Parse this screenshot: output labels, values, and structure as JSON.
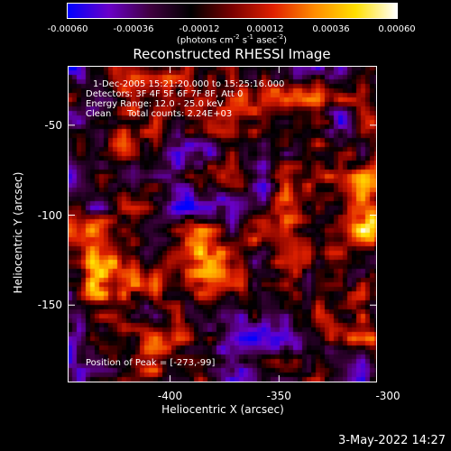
{
  "colorbar": {
    "tick_labels": [
      "-0.00060",
      "-0.00036",
      "-0.00012",
      "0.00012",
      "0.00036",
      "0.00060"
    ],
    "tick_values": [
      -0.0006,
      -0.00036,
      -0.00012,
      0.00012,
      0.00036,
      0.0006
    ],
    "range": [
      -0.0006,
      0.0006
    ],
    "unit_parts": [
      "(photons cm",
      "-2",
      " s",
      "-1",
      " asec",
      "-2",
      ")"
    ],
    "stops": [
      "#0000ff",
      "#6a00c8",
      "#400040",
      "#000000",
      "#7a0000",
      "#e02000",
      "#ff8c00",
      "#ffe000",
      "#ffffff"
    ]
  },
  "title": "Reconstructed RHESSI Image",
  "annotations": {
    "time": "1-Dec-2005 15:21:20.000 to 15:25:16.000",
    "detectors": "Detectors: 3F 4F 5F 6F 7F 8F, Att 0",
    "energy": "Energy Range: 12.0 - 25.0 keV",
    "clean_label": "Clean",
    "total_counts": "Total counts: 2.24E+03",
    "peak": "Position of Peak = [-273,-99]"
  },
  "axes": {
    "xlabel": "Heliocentric X (arcsec)",
    "ylabel": "Heliocentric Y (arcsec)",
    "x_range": [
      -447,
      -305
    ],
    "y_range": [
      -193,
      -17
    ],
    "xticks": [
      {
        "value": -400,
        "label": "-400"
      },
      {
        "value": -350,
        "label": "-350"
      },
      {
        "value": -300,
        "label": "-300"
      }
    ],
    "yticks": [
      {
        "value": -50,
        "label": "-50"
      },
      {
        "value": -100,
        "label": "-100"
      },
      {
        "value": -150,
        "label": "-150"
      }
    ]
  },
  "datestamp": "3-May-2022 14:27"
}
